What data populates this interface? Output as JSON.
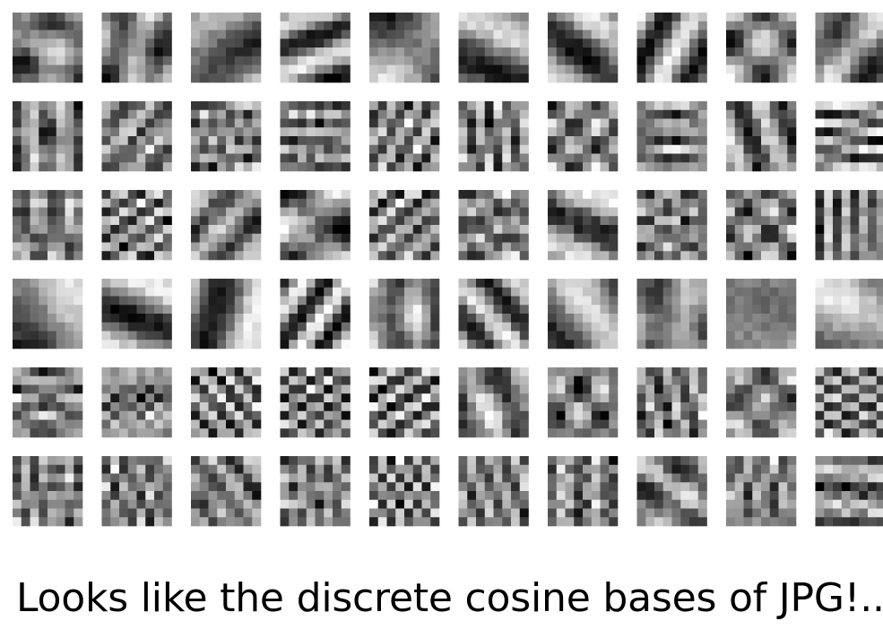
{
  "figure": {
    "rows": 6,
    "cols": 10,
    "patch_resolution": 8,
    "tile_colors": [
      "#000000",
      "#ffffff"
    ]
  },
  "caption": "Looks like the discrete cosine bases of JPG!..."
}
